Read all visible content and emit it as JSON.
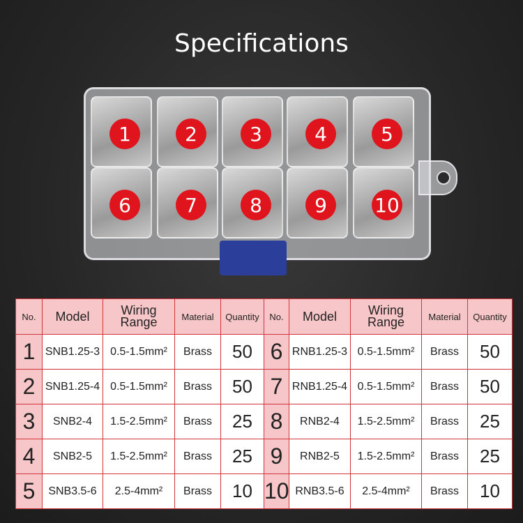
{
  "title": "Specifications",
  "box": {
    "labels": [
      "1",
      "2",
      "3",
      "4",
      "5",
      "6",
      "7",
      "8",
      "9",
      "10"
    ],
    "marker_color": "#e0141c"
  },
  "table": {
    "headers": {
      "no": "No.",
      "model": "Model",
      "wiring_line1": "Wiring",
      "wiring_line2": "Range",
      "material": "Material",
      "quantity": "Quantity"
    },
    "rows": [
      {
        "left": {
          "no": "1",
          "model": "SNB1.25-3",
          "range": "0.5-1.5mm²",
          "material": "Brass",
          "qty": "50"
        },
        "right": {
          "no": "6",
          "model": "RNB1.25-3",
          "range": "0.5-1.5mm²",
          "material": "Brass",
          "qty": "50"
        }
      },
      {
        "left": {
          "no": "2",
          "model": "SNB1.25-4",
          "range": "0.5-1.5mm²",
          "material": "Brass",
          "qty": "50"
        },
        "right": {
          "no": "7",
          "model": "RNB1.25-4",
          "range": "0.5-1.5mm²",
          "material": "Brass",
          "qty": "50"
        }
      },
      {
        "left": {
          "no": "3",
          "model": "SNB2-4",
          "range": "1.5-2.5mm²",
          "material": "Brass",
          "qty": "25"
        },
        "right": {
          "no": "8",
          "model": "RNB2-4",
          "range": "1.5-2.5mm²",
          "material": "Brass",
          "qty": "25"
        }
      },
      {
        "left": {
          "no": "4",
          "model": "SNB2-5",
          "range": "1.5-2.5mm²",
          "material": "Brass",
          "qty": "25"
        },
        "right": {
          "no": "9",
          "model": "RNB2-5",
          "range": "1.5-2.5mm²",
          "material": "Brass",
          "qty": "25"
        }
      },
      {
        "left": {
          "no": "5",
          "model": "SNB3.5-6",
          "range": "2.5-4mm²",
          "material": "Brass",
          "qty": "10"
        },
        "right": {
          "no": "10",
          "model": "RNB3.5-6",
          "range": "2.5-4mm²",
          "material": "Brass",
          "qty": "10"
        }
      }
    ]
  }
}
